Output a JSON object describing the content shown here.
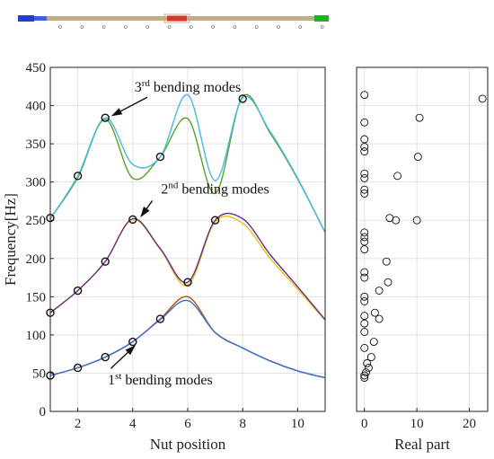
{
  "rod_diagram": {
    "colors": {
      "left_end": "#1f3fd1",
      "shaft": "#c9b25a",
      "nut": "#d23a2a",
      "right_end": "#1fb320"
    }
  },
  "chart_data": [
    {
      "type": "line",
      "xlabel": "Nut position",
      "ylabel": "Frequency[Hz]",
      "xlim": [
        1,
        11
      ],
      "ylim": [
        0,
        450
      ],
      "xticks": [
        "2",
        "4",
        "6",
        "8",
        "10"
      ],
      "yticks": [
        "0",
        "50",
        "100",
        "150",
        "200",
        "250",
        "300",
        "350",
        "400",
        "450"
      ],
      "grid": true,
      "x_values": [
        1,
        2,
        3,
        4,
        5,
        6,
        7,
        8,
        9,
        10,
        11
      ],
      "series": [
        {
          "color": "#e0c415",
          "values": [
            47,
            57,
            71,
            91,
            121,
            150,
            103,
            83,
            66,
            53,
            44
          ]
        },
        {
          "color": "#b5541b",
          "values": [
            47,
            57,
            71,
            91,
            121,
            150,
            103,
            83,
            66,
            53,
            44
          ]
        },
        {
          "color": "#3a6fd8",
          "values": [
            47,
            57,
            71,
            91,
            120,
            145,
            103,
            83,
            66,
            53,
            44
          ]
        },
        {
          "color": "#e0c415",
          "values": [
            129,
            158,
            196,
            251,
            212,
            165,
            248,
            246,
            200,
            160,
            119
          ]
        },
        {
          "color": "#6a2c8c",
          "values": [
            129,
            158,
            196,
            252,
            213,
            169,
            250,
            252,
            205,
            163,
            120
          ]
        },
        {
          "color": "#5aa02c",
          "values": [
            252,
            306,
            382,
            305,
            333,
            383,
            285,
            412,
            364,
            304,
            234
          ]
        },
        {
          "color": "#42bce0",
          "values": [
            252,
            308,
            384,
            323,
            333,
            414,
            302,
            410,
            366,
            305,
            234
          ]
        }
      ],
      "markers": {
        "x": [
          1,
          2,
          3,
          4,
          5,
          1,
          2,
          3,
          4,
          6,
          7,
          1,
          2,
          3,
          5,
          8
        ],
        "y": [
          47,
          57,
          71,
          91,
          121,
          129,
          158,
          196,
          251,
          169,
          250,
          253,
          308,
          384,
          333,
          409
        ]
      },
      "annotations": [
        {
          "text": "1",
          "sup": "st",
          "rest": " bending modes",
          "target": [
            4.2,
            90
          ],
          "label_at": [
            5.0,
            35
          ]
        },
        {
          "text": "2",
          "sup": "nd",
          "rest": " bending modes",
          "target": [
            4.2,
            250
          ],
          "label_at": [
            7.0,
            285
          ]
        },
        {
          "text": "3",
          "sup": "rd",
          "rest": " bending modes",
          "target": [
            3.1,
            384
          ],
          "label_at": [
            6.0,
            418
          ]
        }
      ]
    },
    {
      "type": "scatter",
      "xlabel": "Real part",
      "xlim": [
        -1.5,
        23.5
      ],
      "ylim": [
        0,
        450
      ],
      "xticks": [
        "0",
        "10",
        "20"
      ],
      "grid": true,
      "points": [
        [
          0,
          44
        ],
        [
          0,
          47
        ],
        [
          0.3,
          51
        ],
        [
          0.8,
          57
        ],
        [
          0.5,
          63
        ],
        [
          1.3,
          71
        ],
        [
          0,
          83
        ],
        [
          1.8,
          91
        ],
        [
          0,
          104
        ],
        [
          0,
          115
        ],
        [
          2.8,
          121
        ],
        [
          0,
          125
        ],
        [
          2.0,
          129
        ],
        [
          0,
          144
        ],
        [
          0,
          150
        ],
        [
          2.8,
          158
        ],
        [
          4.5,
          169
        ],
        [
          0,
          175
        ],
        [
          0,
          182
        ],
        [
          4.2,
          196
        ],
        [
          0,
          212
        ],
        [
          0,
          222
        ],
        [
          0,
          228
        ],
        [
          0,
          234
        ],
        [
          6.0,
          250
        ],
        [
          10.0,
          250
        ],
        [
          4.8,
          253
        ],
        [
          0,
          285
        ],
        [
          0,
          290
        ],
        [
          0,
          305
        ],
        [
          6.3,
          308
        ],
        [
          0,
          311
        ],
        [
          10.2,
          333
        ],
        [
          0,
          340
        ],
        [
          0,
          346
        ],
        [
          0,
          356
        ],
        [
          0,
          378
        ],
        [
          10.5,
          384
        ],
        [
          22.5,
          409
        ],
        [
          0,
          414
        ]
      ]
    }
  ]
}
